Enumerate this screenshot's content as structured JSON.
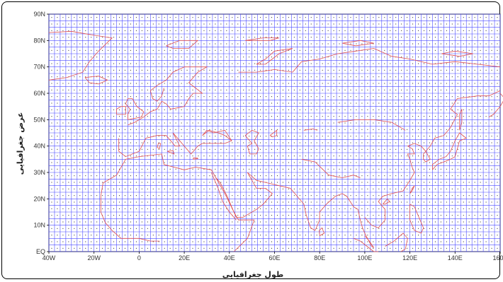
{
  "map": {
    "xlabel": "طول جغرافیایی",
    "ylabel": "عرض جغرافیایی",
    "lon_range": [
      -40,
      160
    ],
    "lat_range": [
      0,
      90
    ],
    "x_ticks": [
      "40W",
      "20W",
      "0",
      "20E",
      "40E",
      "60E",
      "80E",
      "100E",
      "120E",
      "140E",
      "160E"
    ],
    "y_ticks": [
      "EQ",
      "10N",
      "20N",
      "30N",
      "40N",
      "50N",
      "60N",
      "70N",
      "80N",
      "90N"
    ],
    "grid_spacing_deg": 2.5,
    "colors": {
      "grid": "#4b4bff",
      "coast": "#e05050",
      "point": "#222222",
      "frame": "#000000"
    }
  },
  "chart_data": {
    "type": "map",
    "xlabel": "طول جغرافیایی",
    "ylabel": "عرض جغرافیایی",
    "xlim": [
      -40,
      160
    ],
    "ylim": [
      0,
      90
    ],
    "grid": true,
    "grid_spacing": 2.5
  }
}
